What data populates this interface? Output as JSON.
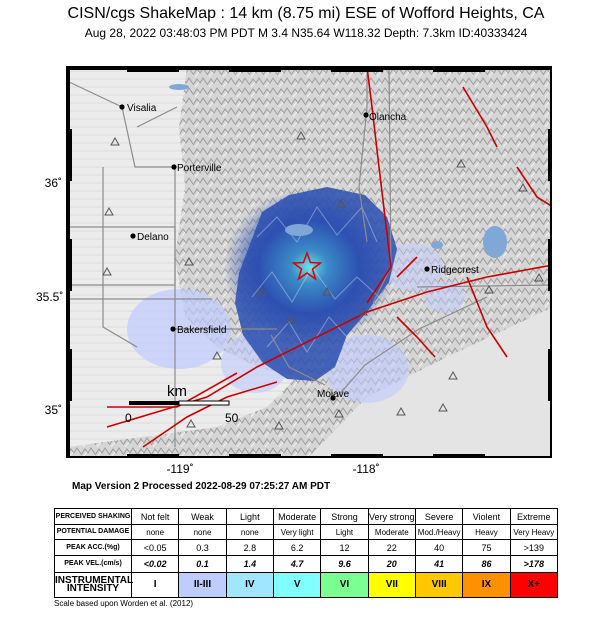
{
  "header": {
    "title": "CISN/cgs ShakeMap : 14 km (8.75 mi) ESE of Wofford Heights, CA",
    "subtitle": "Aug 28, 2022 03:48:03 PM PDT   M 3.4   N35.64 W118.32   Depth: 7.3km   ID:40333424"
  },
  "map": {
    "cities": [
      {
        "name": "Visalia"
      },
      {
        "name": "Olancha"
      },
      {
        "name": "Porterville"
      },
      {
        "name": "Delano"
      },
      {
        "name": "Ridgecrest"
      },
      {
        "name": "Bakersfield"
      },
      {
        "name": "Mojave"
      }
    ],
    "lat_labels": [
      "36˚",
      "35.5˚",
      "35˚"
    ],
    "lon_labels": [
      "-119˚",
      "-118˚"
    ],
    "scale_bar": {
      "unit": "km",
      "start": "0",
      "end": "50"
    },
    "epicenter_icon": "star-icon",
    "colors": {
      "fault": "#cc0000",
      "road": "#8c8c8c",
      "water": "#7fa8d8",
      "shaking": "#2a4db0"
    }
  },
  "processed": "Map Version 2 Processed 2022-08-29 07:25:27 AM PDT",
  "legend": {
    "headers": {
      "shaking": "PERCEIVED SHAKING",
      "damage": "POTENTIAL DAMAGE",
      "acc": "PEAK ACC.(%g)",
      "vel": "PEAK VEL.(cm/s)",
      "intensity": "INSTRUMENTAL INTENSITY"
    },
    "columns": [
      {
        "shaking": "Not felt",
        "damage": "none",
        "acc": "<0.05",
        "vel": "<0.02",
        "intensity": "I",
        "color": "#ffffff",
        "text_color": "#000000"
      },
      {
        "shaking": "Weak",
        "damage": "none",
        "acc": "0.3",
        "vel": "0.1",
        "intensity": "II-III",
        "color": "#bfccff",
        "text_color": "#000000"
      },
      {
        "shaking": "Light",
        "damage": "none",
        "acc": "2.8",
        "vel": "1.4",
        "intensity": "IV",
        "color": "#a0e6ff",
        "text_color": "#000000"
      },
      {
        "shaking": "Moderate",
        "damage": "Very light",
        "acc": "6.2",
        "vel": "4.7",
        "intensity": "V",
        "color": "#80ffff",
        "text_color": "#000000"
      },
      {
        "shaking": "Strong",
        "damage": "Light",
        "acc": "12",
        "vel": "9.6",
        "intensity": "VI",
        "color": "#7aff93",
        "text_color": "#000000"
      },
      {
        "shaking": "Very strong",
        "damage": "Moderate",
        "acc": "22",
        "vel": "20",
        "intensity": "VII",
        "color": "#ffff00",
        "text_color": "#000000"
      },
      {
        "shaking": "Severe",
        "damage": "Mod./Heavy",
        "acc": "40",
        "vel": "41",
        "intensity": "VIII",
        "color": "#ffc800",
        "text_color": "#000000"
      },
      {
        "shaking": "Violent",
        "damage": "Heavy",
        "acc": "75",
        "vel": "86",
        "intensity": "IX",
        "color": "#ff9100",
        "text_color": "#000000"
      },
      {
        "shaking": "Extreme",
        "damage": "Very Heavy",
        "acc": ">139",
        "vel": ">178",
        "intensity": "X+",
        "color": "#ff0000",
        "text_color": "#000000"
      }
    ]
  },
  "scale_note": "Scale based upon Worden et al. (2012)"
}
